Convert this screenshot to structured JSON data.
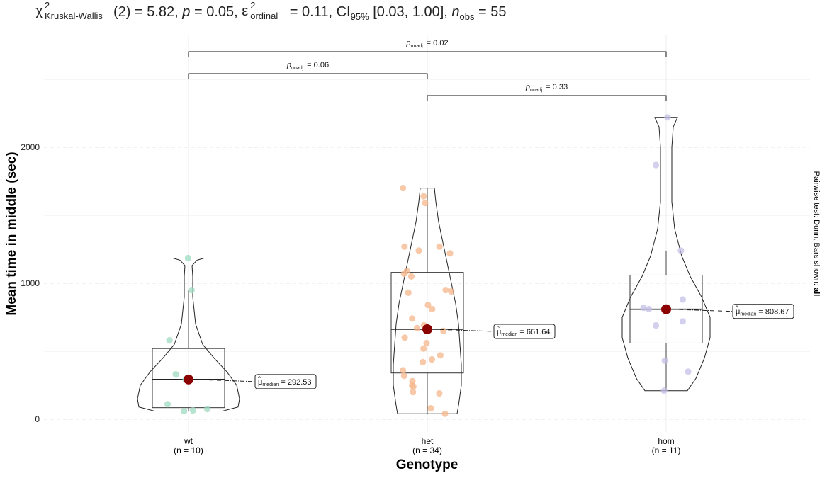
{
  "title": {
    "chi": "χ",
    "chi_sup": "2",
    "chi_sub": "Kruskal-Wallis",
    "stat_text": "(2) = 5.82, ",
    "p_symbol": "p",
    "p_text": " = 0.05, ",
    "eps": "ε",
    "eps_sup": "2",
    "eps_sub": "ordinal",
    "eps_text": " = 0.11, CI",
    "ci_sub": "95%",
    "ci_text": " [0.03, 1.00], ",
    "n_symbol": "n",
    "n_sub": "obs",
    "n_text": " = 55"
  },
  "caption": {
    "text": "Pairwise test: Dunn, Bars shown: ",
    "bold": "all"
  },
  "chart_data": {
    "type": "violin-box-scatter",
    "xlabel": "Genotype",
    "ylabel": "Mean time in middle (sec)",
    "ylim": [
      -80,
      2500
    ],
    "yticks": [
      0,
      1000,
      2000
    ],
    "grid": true,
    "colors": {
      "wt": "#9fd9c2",
      "het": "#f5b78c",
      "hom": "#c3c0e6",
      "median_point": "#8b0000"
    },
    "groups": [
      {
        "name": "wt",
        "n_label": "(n = 10)",
        "points": [
          1185,
          950,
          580,
          330,
          290,
          280,
          110,
          75,
          65,
          60
        ],
        "box": {
          "q1": 85,
          "median": 292.53,
          "q3": 520,
          "whisker_low": 60,
          "whisker_high": 950
        },
        "violin_max": 1185,
        "median_label": "292.53"
      },
      {
        "name": "het",
        "n_label": "(n = 34)",
        "points": [
          1700,
          1640,
          1590,
          1270,
          1270,
          1240,
          1220,
          1090,
          1070,
          1050,
          950,
          940,
          930,
          840,
          810,
          740,
          690,
          670,
          650,
          600,
          560,
          520,
          470,
          440,
          420,
          360,
          320,
          280,
          250,
          240,
          200,
          190,
          80,
          40
        ],
        "box": {
          "q1": 340,
          "median": 661.64,
          "q3": 1080,
          "whisker_low": 35,
          "whisker_high": 1700
        },
        "violin_max": 1700,
        "median_label": "661.64"
      },
      {
        "name": "hom",
        "n_label": "(n = 11)",
        "points": [
          2220,
          1870,
          1240,
          880,
          820,
          810,
          720,
          690,
          430,
          350,
          210
        ],
        "box": {
          "q1": 560,
          "median": 808.67,
          "q3": 1060,
          "whisker_low": 210,
          "whisker_high": 1240
        },
        "violin_max": 2220,
        "median_label": "808.67"
      }
    ],
    "comparisons": [
      {
        "from": "wt",
        "to": "hom",
        "p_symbol": "p",
        "p_sub": "unadj.",
        "p_value": " = 0.02"
      },
      {
        "from": "wt",
        "to": "het",
        "p_symbol": "p",
        "p_sub": "unadj.",
        "p_value": " = 0.06"
      },
      {
        "from": "het",
        "to": "hom",
        "p_symbol": "p",
        "p_sub": "unadj.",
        "p_value": " = 0.33"
      }
    ],
    "median_label_prefix": "μ",
    "median_label_sub": "median",
    "median_label_eq": " = "
  }
}
